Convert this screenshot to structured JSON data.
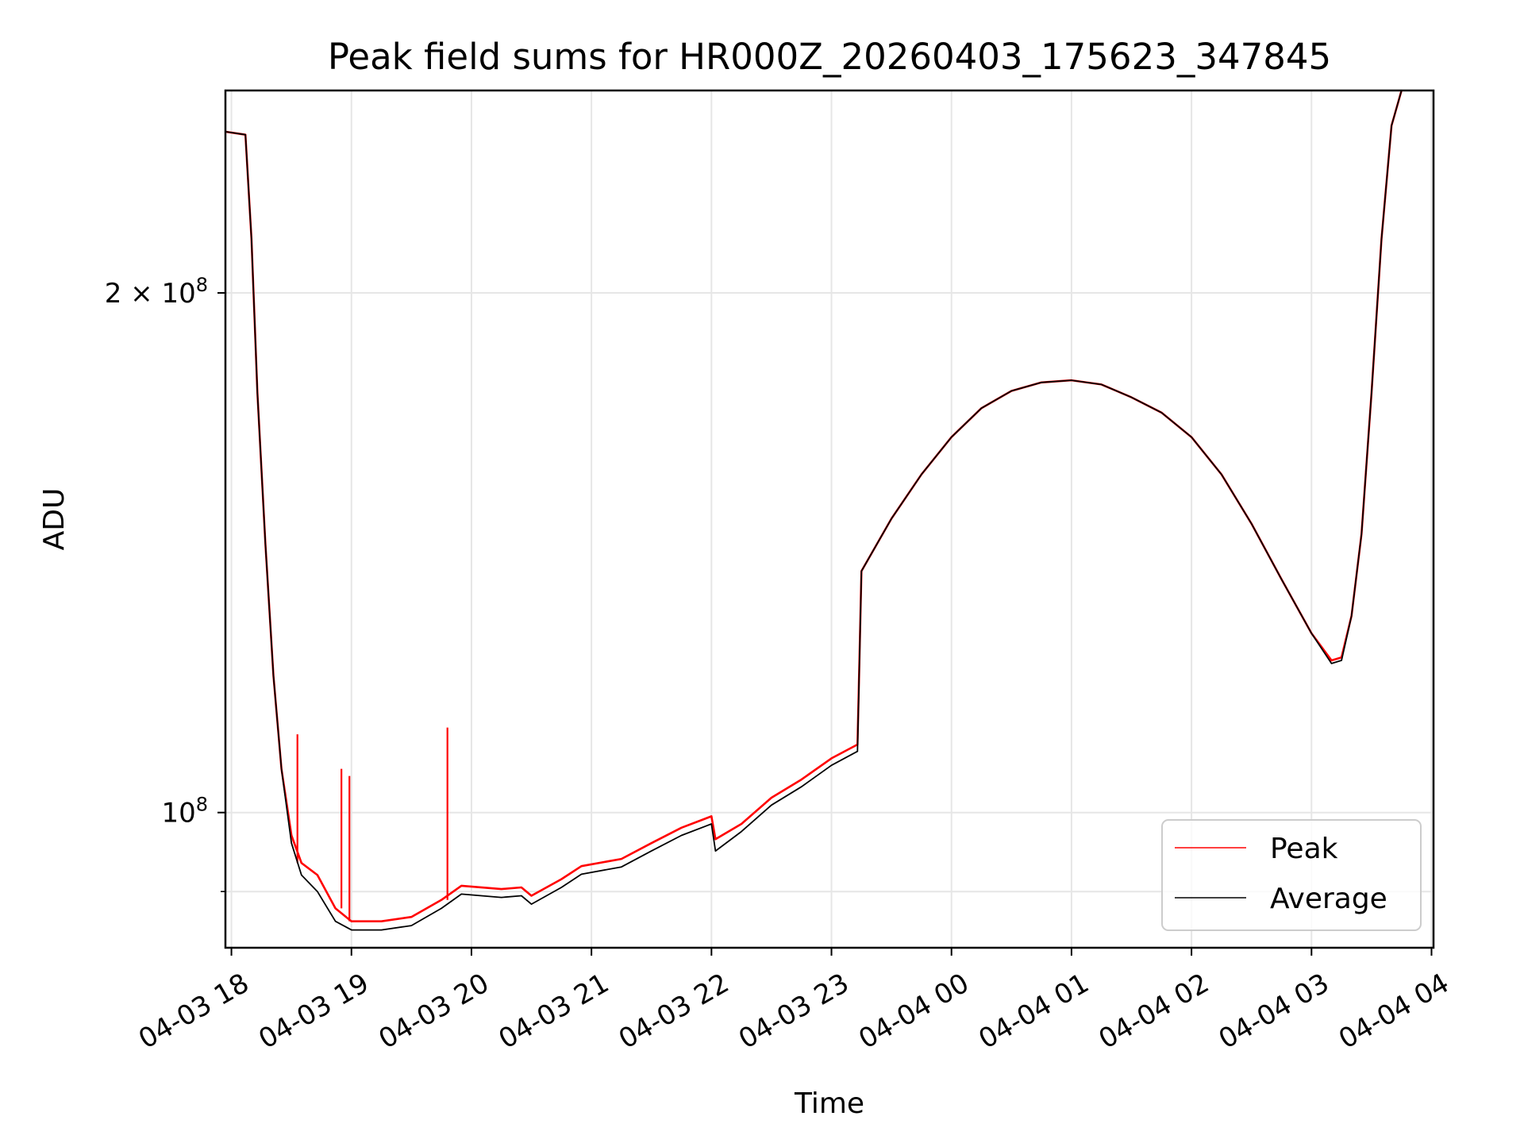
{
  "chart_data": {
    "type": "line",
    "title": "Peak field sums for HR000Z_20260403_175623_347845",
    "xlabel": "Time",
    "ylabel": "ADU",
    "y_scale": "log",
    "grid": true,
    "legend_position": "lower-right",
    "xlim": [
      "2026-04-03 17:57",
      "2026-04-04 04:01"
    ],
    "ylim": [
      83500000,
      262000000
    ],
    "x_ticks": [
      "04-03 18",
      "04-03 19",
      "04-03 20",
      "04-03 21",
      "04-03 22",
      "04-03 23",
      "04-04 00",
      "04-04 01",
      "04-04 02",
      "04-04 03",
      "04-04 04"
    ],
    "x_tick_times": [
      "2026-04-03 18:00",
      "2026-04-03 19:00",
      "2026-04-03 20:00",
      "2026-04-03 21:00",
      "2026-04-03 22:00",
      "2026-04-03 23:00",
      "2026-04-04 00:00",
      "2026-04-04 01:00",
      "2026-04-04 02:00",
      "2026-04-04 03:00",
      "2026-04-04 04:00"
    ],
    "y_ticks": [
      {
        "value": 200000000,
        "base": "2 × 10",
        "exp": "8"
      },
      {
        "value": 100000000,
        "base": "10",
        "exp": "8"
      }
    ],
    "y_minor_ticks": [
      90000000
    ],
    "series": [
      {
        "name": "Peak",
        "color": "#ff0000",
        "spikes": [
          {
            "x": "2026-04-03 18:33",
            "y": 111000000
          },
          {
            "x": "2026-04-03 18:55",
            "y": 106000000
          },
          {
            "x": "2026-04-03 18:59",
            "y": 105000000
          },
          {
            "x": "2026-04-03 19:48",
            "y": 112000000
          }
        ],
        "points": [
          [
            "2026-04-03 17:57",
            248000000
          ],
          [
            "2026-04-03 18:07",
            247000000
          ],
          [
            "2026-04-03 18:10",
            215000000
          ],
          [
            "2026-04-03 18:13",
            175000000
          ],
          [
            "2026-04-03 18:17",
            143000000
          ],
          [
            "2026-04-03 18:21",
            120000000
          ],
          [
            "2026-04-03 18:25",
            106000000
          ],
          [
            "2026-04-03 18:30",
            97000000
          ],
          [
            "2026-04-03 18:35",
            93500000
          ],
          [
            "2026-04-03 18:43",
            92000000
          ],
          [
            "2026-04-03 18:52",
            88000000
          ],
          [
            "2026-04-03 19:00",
            86500000
          ],
          [
            "2026-04-03 19:15",
            86500000
          ],
          [
            "2026-04-03 19:30",
            87000000
          ],
          [
            "2026-04-03 19:45",
            89000000
          ],
          [
            "2026-04-03 19:55",
            90700000
          ],
          [
            "2026-04-03 20:15",
            90300000
          ],
          [
            "2026-04-03 20:25",
            90500000
          ],
          [
            "2026-04-03 20:30",
            89500000
          ],
          [
            "2026-04-03 20:45",
            91500000
          ],
          [
            "2026-04-03 20:55",
            93100000
          ],
          [
            "2026-04-03 21:15",
            94000000
          ],
          [
            "2026-04-03 21:30",
            96000000
          ],
          [
            "2026-04-03 21:45",
            98000000
          ],
          [
            "2026-04-03 22:00",
            99500000
          ],
          [
            "2026-04-03 22:02",
            96500000
          ],
          [
            "2026-04-03 22:15",
            98500000
          ],
          [
            "2026-04-03 22:30",
            102000000
          ],
          [
            "2026-04-03 22:45",
            104500000
          ],
          [
            "2026-04-03 23:00",
            107500000
          ],
          [
            "2026-04-03 23:13",
            109500000
          ],
          [
            "2026-04-03 23:15",
            138000000
          ],
          [
            "2026-04-03 23:30",
            148000000
          ],
          [
            "2026-04-03 23:45",
            157000000
          ],
          [
            "2026-04-04 00:00",
            165000000
          ],
          [
            "2026-04-04 00:15",
            171500000
          ],
          [
            "2026-04-04 00:30",
            175500000
          ],
          [
            "2026-04-04 00:45",
            177500000
          ],
          [
            "2026-04-04 01:00",
            178000000
          ],
          [
            "2026-04-04 01:15",
            177000000
          ],
          [
            "2026-04-04 01:30",
            174000000
          ],
          [
            "2026-04-04 01:45",
            170500000
          ],
          [
            "2026-04-04 02:00",
            165000000
          ],
          [
            "2026-04-04 02:15",
            157000000
          ],
          [
            "2026-04-04 02:30",
            147000000
          ],
          [
            "2026-04-04 02:45",
            136500000
          ],
          [
            "2026-04-04 03:00",
            127000000
          ],
          [
            "2026-04-04 03:10",
            122500000
          ],
          [
            "2026-04-04 03:15",
            123000000
          ],
          [
            "2026-04-04 03:20",
            130000000
          ],
          [
            "2026-04-04 03:25",
            145000000
          ],
          [
            "2026-04-04 03:30",
            175000000
          ],
          [
            "2026-04-04 03:35",
            215000000
          ],
          [
            "2026-04-04 03:40",
            250000000
          ],
          [
            "2026-04-04 03:45",
            262000000
          ]
        ]
      },
      {
        "name": "Average",
        "color": "#000000",
        "points": [
          [
            "2026-04-03 17:57",
            248000000
          ],
          [
            "2026-04-03 18:07",
            247000000
          ],
          [
            "2026-04-03 18:10",
            215000000
          ],
          [
            "2026-04-03 18:13",
            175000000
          ],
          [
            "2026-04-03 18:17",
            143000000
          ],
          [
            "2026-04-03 18:21",
            120000000
          ],
          [
            "2026-04-03 18:25",
            106000000
          ],
          [
            "2026-04-03 18:30",
            96000000
          ],
          [
            "2026-04-03 18:35",
            92000000
          ],
          [
            "2026-04-03 18:43",
            90000000
          ],
          [
            "2026-04-03 18:52",
            86500000
          ],
          [
            "2026-04-03 19:00",
            85500000
          ],
          [
            "2026-04-03 19:15",
            85500000
          ],
          [
            "2026-04-03 19:30",
            86000000
          ],
          [
            "2026-04-03 19:45",
            88000000
          ],
          [
            "2026-04-03 19:55",
            89700000
          ],
          [
            "2026-04-03 20:15",
            89300000
          ],
          [
            "2026-04-03 20:25",
            89500000
          ],
          [
            "2026-04-03 20:30",
            88500000
          ],
          [
            "2026-04-03 20:45",
            90500000
          ],
          [
            "2026-04-03 20:55",
            92100000
          ],
          [
            "2026-04-03 21:15",
            93000000
          ],
          [
            "2026-04-03 21:30",
            95000000
          ],
          [
            "2026-04-03 21:45",
            97000000
          ],
          [
            "2026-04-03 22:00",
            98500000
          ],
          [
            "2026-04-03 22:02",
            95000000
          ],
          [
            "2026-04-03 22:15",
            97500000
          ],
          [
            "2026-04-03 22:30",
            101000000
          ],
          [
            "2026-04-03 22:45",
            103500000
          ],
          [
            "2026-04-03 23:00",
            106500000
          ],
          [
            "2026-04-03 23:13",
            108500000
          ],
          [
            "2026-04-03 23:15",
            138000000
          ],
          [
            "2026-04-03 23:30",
            148000000
          ],
          [
            "2026-04-03 23:45",
            157000000
          ],
          [
            "2026-04-04 00:00",
            165000000
          ],
          [
            "2026-04-04 00:15",
            171500000
          ],
          [
            "2026-04-04 00:30",
            175500000
          ],
          [
            "2026-04-04 00:45",
            177500000
          ],
          [
            "2026-04-04 01:00",
            178000000
          ],
          [
            "2026-04-04 01:15",
            177000000
          ],
          [
            "2026-04-04 01:30",
            174000000
          ],
          [
            "2026-04-04 01:45",
            170500000
          ],
          [
            "2026-04-04 02:00",
            165000000
          ],
          [
            "2026-04-04 02:15",
            157000000
          ],
          [
            "2026-04-04 02:30",
            147000000
          ],
          [
            "2026-04-04 02:45",
            136500000
          ],
          [
            "2026-04-04 03:00",
            127000000
          ],
          [
            "2026-04-04 03:10",
            122000000
          ],
          [
            "2026-04-04 03:15",
            122500000
          ],
          [
            "2026-04-04 03:20",
            130000000
          ],
          [
            "2026-04-04 03:25",
            145000000
          ],
          [
            "2026-04-04 03:30",
            175000000
          ],
          [
            "2026-04-04 03:35",
            215000000
          ],
          [
            "2026-04-04 03:40",
            250000000
          ],
          [
            "2026-04-04 03:45",
            262000000
          ]
        ]
      }
    ]
  }
}
